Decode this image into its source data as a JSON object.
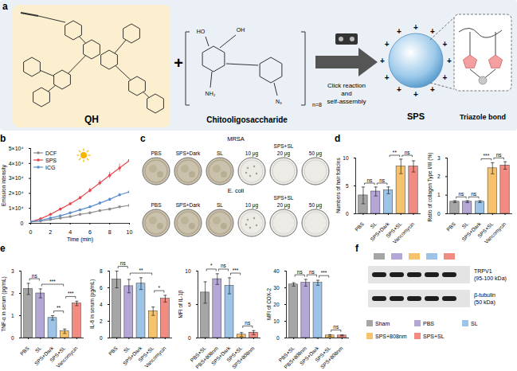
{
  "panel_letters": [
    "a",
    "b",
    "c",
    "d",
    "e",
    "f"
  ],
  "diagram": {
    "molecule": "QH",
    "plus": "+",
    "polymer": "Chitooligosaccharide",
    "polymer_atoms": [
      "HO",
      "OH",
      "NH₂",
      "N₃",
      "n=8"
    ],
    "process": "Click reaction and self-assembly",
    "product": "SPS",
    "charge": "+",
    "detail": "Triazole bond"
  },
  "chart_data": [
    {
      "type": "line",
      "xlabel": "Time (min)",
      "ylabel": "Emission intensity",
      "x": [
        0,
        1,
        2,
        3,
        4,
        5,
        6,
        7,
        8,
        9,
        10
      ],
      "series": [
        {
          "name": "DCF",
          "color": "#8c8c8c",
          "values": [
            1000,
            1500,
            2500,
            3500,
            4500,
            6000,
            7000,
            8500,
            9500,
            11000,
            12000
          ],
          "errors": [
            100,
            150,
            200,
            250,
            300,
            350,
            400,
            450,
            500,
            550,
            600
          ]
        },
        {
          "name": "SPS",
          "color": "#e4474e",
          "values": [
            1000,
            3000,
            6000,
            9500,
            13000,
            17000,
            22000,
            27000,
            32000,
            37000,
            42000
          ],
          "errors": [
            100,
            300,
            500,
            700,
            900,
            1100,
            1500,
            1800,
            2200,
            2600,
            3000
          ]
        },
        {
          "name": "ICG",
          "color": "#5b8fd0",
          "values": [
            1000,
            2000,
            3500,
            5000,
            7000,
            9000,
            11000,
            13500,
            16000,
            19000,
            21000
          ],
          "errors": [
            100,
            200,
            300,
            400,
            500,
            600,
            700,
            800,
            900,
            1000,
            1100
          ]
        }
      ],
      "xlim": [
        0,
        10
      ],
      "xticks": [
        0,
        2,
        4,
        6,
        8,
        10
      ],
      "ylim": [
        0,
        50000
      ],
      "yticks": [
        0,
        {
          "value": 10000,
          "label": "1×10⁴"
        },
        {
          "value": 20000,
          "label": "2×10⁴"
        },
        {
          "value": 30000,
          "label": "3×10⁴"
        },
        {
          "value": 40000,
          "label": "4×10⁴"
        },
        {
          "value": 50000,
          "label": "5×10⁴"
        }
      ],
      "legend": "top-left",
      "marker": "circle"
    },
    {
      "type": "bar",
      "ylabel": "Numbers of hair follicles",
      "categories": [
        "PBS",
        "SL",
        "SPS+Dark",
        "SPS+SL",
        "Vancomycin"
      ],
      "values": [
        3.3,
        4.0,
        4.2,
        8.5,
        8.5
      ],
      "errors": [
        1.5,
        0.8,
        0.6,
        1.3,
        1.0
      ],
      "colors": [
        "#a6a6a6",
        "#b4a7d6",
        "#9dc3e6",
        "#f6c26b",
        "#f28b82"
      ],
      "ylim": [
        0,
        10
      ],
      "yticks": [
        0,
        5,
        10
      ],
      "annotations": [
        {
          "from": 0,
          "to": 1,
          "label": "ns"
        },
        {
          "from": 1,
          "to": 2,
          "label": "ns"
        },
        {
          "from": 2,
          "to": 3,
          "label": "**"
        },
        {
          "from": 3,
          "to": 4,
          "label": "ns"
        }
      ]
    },
    {
      "type": "bar",
      "ylabel": "Ratio of collagen Type I/III (%)",
      "categories": [
        "PBS",
        "SL",
        "SPS+Dark",
        "SPS+SL",
        "Vancomycin"
      ],
      "values": [
        0.65,
        0.65,
        0.65,
        2.45,
        2.6
      ],
      "errors": [
        0.05,
        0.05,
        0.05,
        0.3,
        0.2
      ],
      "colors": [
        "#a6a6a6",
        "#b4a7d6",
        "#9dc3e6",
        "#f6c26b",
        "#f28b82"
      ],
      "ylim": [
        0,
        3
      ],
      "yticks": [
        0,
        1,
        2,
        3
      ],
      "annotations": [
        {
          "from": 0,
          "to": 1,
          "label": "ns"
        },
        {
          "from": 1,
          "to": 2,
          "label": "ns"
        },
        {
          "from": 2,
          "to": 3,
          "label": "***"
        },
        {
          "from": 3,
          "to": 4,
          "label": "ns"
        }
      ]
    },
    {
      "type": "bar",
      "ylabel": "TNF-α in serum (pg/mL)",
      "categories": [
        "PBS",
        "SL",
        "SPS+Dark",
        "SPS+SL",
        "Vancomycin"
      ],
      "values": [
        2.2,
        2.0,
        0.9,
        0.3,
        1.55
      ],
      "errors": [
        0.25,
        0.2,
        0.1,
        0.1,
        0.1
      ],
      "colors": [
        "#a6a6a6",
        "#b4a7d6",
        "#9dc3e6",
        "#f6c26b",
        "#f28b82"
      ],
      "ylim": [
        0,
        3
      ],
      "yticks": [
        0,
        1,
        2,
        3
      ],
      "annotations": [
        {
          "from": 0,
          "to": 1,
          "label": "ns"
        },
        {
          "from": 1,
          "to": 3,
          "label": "***"
        },
        {
          "from": 2,
          "to": 3,
          "label": "**"
        },
        {
          "from": 3,
          "to": 4,
          "label": "***"
        }
      ]
    },
    {
      "type": "bar",
      "ylabel": "IL-6 in serum (pg/mL)",
      "categories": [
        "PBS",
        "SL",
        "SPS+Dark",
        "SPS+SL",
        "Vancomycin"
      ],
      "values": [
        7.0,
        6.2,
        6.5,
        3.2,
        4.7
      ],
      "errors": [
        1.0,
        0.8,
        0.7,
        0.5,
        0.4
      ],
      "colors": [
        "#a6a6a6",
        "#b4a7d6",
        "#9dc3e6",
        "#f6c26b",
        "#f28b82"
      ],
      "ylim": [
        0,
        8
      ],
      "yticks": [
        0,
        2,
        4,
        6,
        8
      ],
      "annotations": [
        {
          "from": 0,
          "to": 1,
          "label": "ns"
        },
        {
          "from": 1,
          "to": 3,
          "label": "**"
        },
        {
          "from": 3,
          "to": 4,
          "label": "*"
        }
      ]
    },
    {
      "type": "bar",
      "ylabel": "MFI of IL-1β",
      "categories": [
        "PBS+SL",
        "PBS+808nm",
        "SPS+Dark",
        "SPS+SL",
        "SPS+808nm"
      ],
      "values": [
        6.8,
        8.8,
        7.8,
        0.5,
        0.8
      ],
      "errors": [
        1.6,
        0.8,
        1.2,
        0.3,
        0.3
      ],
      "colors": [
        "#a6a6a6",
        "#b4a7d6",
        "#9dc3e6",
        "#f6c26b",
        "#f28b82"
      ],
      "ylim": [
        0,
        10
      ],
      "yticks": [
        0,
        5,
        10
      ],
      "annotations": [
        {
          "from": 0,
          "to": 1,
          "label": "*"
        },
        {
          "from": 1,
          "to": 2,
          "label": "ns"
        },
        {
          "from": 2,
          "to": 3,
          "label": "***"
        },
        {
          "from": 3,
          "to": 4,
          "label": "ns"
        }
      ]
    },
    {
      "type": "bar",
      "ylabel": "MFI of COX-2",
      "categories": [
        "PBS+SL",
        "PBS+808nm",
        "SPS+Dark",
        "SPS+SL",
        "SPS+808nm"
      ],
      "values": [
        32,
        33,
        33,
        1.5,
        1.5
      ],
      "errors": [
        1,
        2,
        1.5,
        0.5,
        0.3
      ],
      "colors": [
        "#a6a6a6",
        "#b4a7d6",
        "#9dc3e6",
        "#f6c26b",
        "#f28b82"
      ],
      "ylim": [
        0,
        40
      ],
      "yticks": [
        0,
        10,
        20,
        30,
        40
      ],
      "annotations": [
        {
          "from": 0,
          "to": 1,
          "label": "ns"
        },
        {
          "from": 1,
          "to": 2,
          "label": "ns"
        },
        {
          "from": 2,
          "to": 3,
          "label": "***"
        },
        {
          "from": 3,
          "to": 4,
          "label": "ns"
        }
      ]
    }
  ],
  "photos": {
    "rows": [
      {
        "strain": "MRSA",
        "group": "SPS+SL",
        "dishes": [
          "PBS",
          "SPS+Dark",
          "SL",
          "10 μg",
          "20 μg",
          "50 μg"
        ]
      },
      {
        "strain": "E. coli",
        "group": "SPS+SL",
        "dishes": [
          "PBS",
          "SPS+Dark",
          "SL",
          "10 μg",
          "20 μg",
          "50 μg"
        ]
      }
    ]
  },
  "blot": {
    "lanes": [
      "Sham",
      "PBS",
      "SPS+808nm",
      "SL",
      "SPS+SL"
    ],
    "bands": [
      {
        "name": "TRPV1",
        "size": "(95-100 kDa)"
      },
      {
        "name": "β-tubulin",
        "size": "(50 kDa)"
      }
    ],
    "legend": [
      {
        "name": "Sham",
        "color": "#a6a6a6"
      },
      {
        "name": "PBS",
        "color": "#b4a7d6"
      },
      {
        "name": "SL",
        "color": "#9dc3e6"
      },
      {
        "name": "SPS+808nm",
        "color": "#f6c26b"
      },
      {
        "name": "SPS+SL",
        "color": "#f28b82"
      }
    ]
  }
}
